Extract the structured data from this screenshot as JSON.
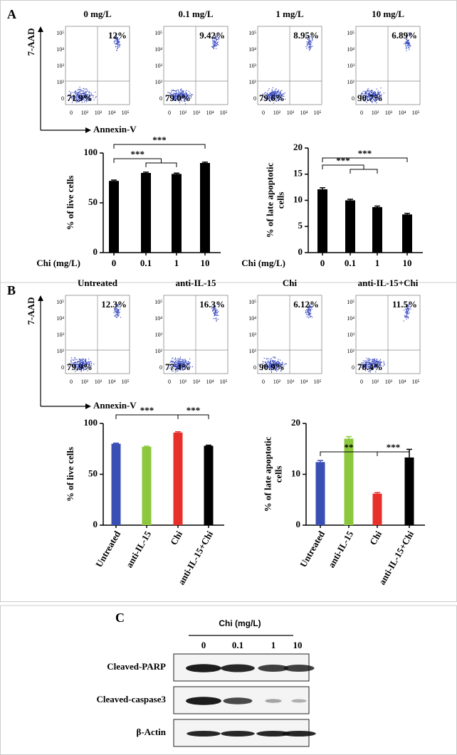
{
  "panel_labels": [
    "A",
    "B",
    "C"
  ],
  "flow_axis": {
    "y_label": "7-AAD",
    "x_label": "Annexin-V",
    "ticks": [
      "0",
      "10²",
      "10³",
      "10⁴",
      "10⁵"
    ]
  },
  "flow_A": [
    {
      "title": "0 mg/L",
      "upper_right": "12%",
      "lower_left": "71.9%"
    },
    {
      "title": "0.1 mg/L",
      "upper_right": "9.42%",
      "lower_left": "79.0%"
    },
    {
      "title": "1 mg/L",
      "upper_right": "8.95%",
      "lower_left": "79.6%"
    },
    {
      "title": "10 mg/L",
      "upper_right": "6.89%",
      "lower_left": "90.7%"
    }
  ],
  "flow_B": [
    {
      "title": "Untreated",
      "upper_right": "12.3%",
      "lower_left": "79.9%"
    },
    {
      "title": "anti-IL-15",
      "upper_right": "16.3%",
      "lower_left": "77.4%"
    },
    {
      "title": "Chi",
      "upper_right": "6.12%",
      "lower_left": "90.9%"
    },
    {
      "title": "anti-IL-15+Chi",
      "upper_right": "11.5%",
      "lower_left": "78.4%"
    }
  ],
  "chart_data": [
    {
      "type": "bar",
      "categories": [
        "0",
        "0.1",
        "1",
        "10"
      ],
      "values": [
        72,
        80,
        79,
        90
      ],
      "errors": [
        0.8,
        0.8,
        0.8,
        0.8
      ],
      "color": "#000000",
      "ylim": [
        0,
        100
      ],
      "yticks": [
        0,
        50,
        100
      ],
      "y_label": [
        "% of live cells"
      ],
      "x_label": "Chi (mg/L)",
      "annotations": [
        "***",
        "***"
      ]
    },
    {
      "type": "bar",
      "categories": [
        "0",
        "0.1",
        "1",
        "10"
      ],
      "values": [
        12.1,
        10,
        8.7,
        7.3
      ],
      "errors": [
        0.3,
        0.2,
        0.2,
        0.2
      ],
      "color": "#000000",
      "ylim": [
        0,
        20
      ],
      "yticks": [
        0,
        5,
        10,
        15,
        20
      ],
      "y_label": [
        "% of late apoptotic",
        "cells"
      ],
      "x_label": "Chi (mg/L)",
      "annotations": [
        "***",
        "***"
      ]
    },
    {
      "type": "bar",
      "categories": [
        "Untreated",
        "anti-IL-15",
        "Chi",
        "anti-IL-15+Chi"
      ],
      "values": [
        80,
        77,
        91,
        78
      ],
      "errors": [
        0.6,
        0.6,
        0.8,
        0.6
      ],
      "colors": [
        "#3a4fb4",
        "#8cc83c",
        "#e8302a",
        "#000000"
      ],
      "ylim": [
        0,
        100
      ],
      "yticks": [
        0,
        50,
        100
      ],
      "y_label": [
        "% of live cells"
      ],
      "annotations": [
        "***",
        "***"
      ]
    },
    {
      "type": "bar",
      "categories": [
        "Untreated",
        "anti-IL-15",
        "Chi",
        "anti-IL-15+Chi"
      ],
      "values": [
        12.4,
        17,
        6.2,
        13.3
      ],
      "errors": [
        0.3,
        0.4,
        0.2,
        1.6
      ],
      "colors": [
        "#3a4fb4",
        "#8cc83c",
        "#e8302a",
        "#000000"
      ],
      "ylim": [
        0,
        20
      ],
      "yticks": [
        0,
        10,
        20
      ],
      "y_label": [
        "% of late apoptotic",
        "cells"
      ],
      "annotations": [
        "**",
        "***"
      ]
    }
  ],
  "blot": {
    "title": "Chi (mg/L)",
    "lanes": [
      "0",
      "0.1",
      "1",
      "10"
    ],
    "rows": [
      "Cleaved-PARP",
      "Cleaved-caspase3",
      "β-Actin"
    ]
  }
}
